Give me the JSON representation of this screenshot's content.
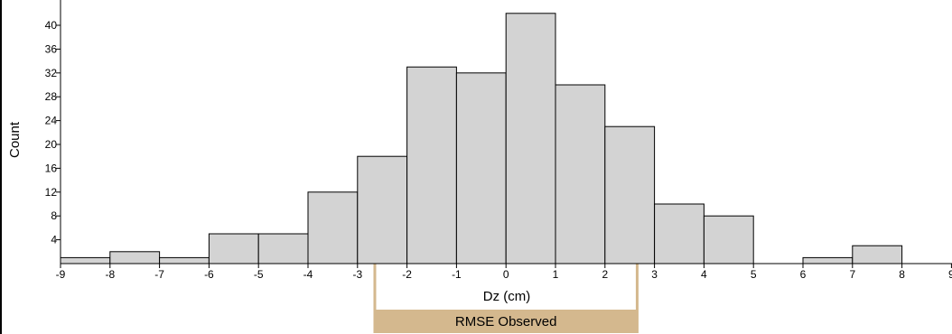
{
  "chart_data": {
    "type": "bar",
    "xlabel": "Dz (cm)",
    "ylabel": "Count",
    "bin_edges": [
      -9,
      -8,
      -7,
      -6,
      -5,
      -4,
      -3,
      -2,
      -1,
      0,
      1,
      2,
      3,
      4,
      5,
      6,
      7,
      8
    ],
    "values": [
      1,
      2,
      1,
      5,
      5,
      12,
      18,
      33,
      32,
      42,
      30,
      23,
      10,
      8,
      0,
      1,
      3
    ],
    "xlim": [
      -9,
      9
    ],
    "ylim": [
      0,
      43
    ],
    "x_ticks": [
      "-9",
      "-8",
      "-7",
      "-6",
      "-5",
      "-4",
      "-3",
      "-2",
      "-1",
      "0",
      "1",
      "2",
      "3",
      "4",
      "5",
      "6",
      "7",
      "8",
      "9"
    ],
    "y_ticks": [
      "4",
      "8",
      "12",
      "16",
      "20",
      "24",
      "28",
      "32",
      "36",
      "40"
    ],
    "bar_fill": "#d3d3d3",
    "bar_stroke": "#000000",
    "grid": false,
    "annotations": [
      {
        "label": "RMSE Observed",
        "x_range": [
          -2.65,
          2.65
        ],
        "color": "#d4b88e"
      }
    ]
  }
}
